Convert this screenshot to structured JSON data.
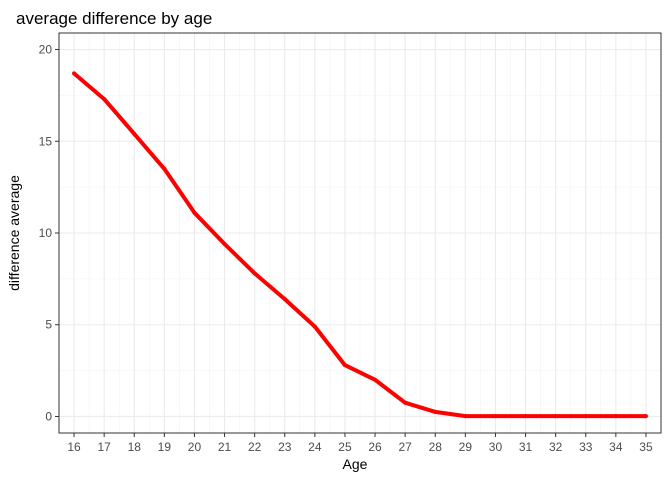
{
  "chart_data": {
    "type": "line",
    "title": "average difference by age",
    "xlabel": "Age",
    "ylabel": "difference average",
    "x": [
      16,
      17,
      18,
      19,
      20,
      21,
      22,
      23,
      24,
      25,
      26,
      27,
      28,
      29,
      30,
      31,
      32,
      33,
      34,
      35
    ],
    "xticks": [
      "16",
      "17",
      "18",
      "19",
      "20",
      "21",
      "22",
      "23",
      "24",
      "25",
      "26",
      "27",
      "28",
      "29",
      "30",
      "31",
      "32",
      "33",
      "34",
      "35"
    ],
    "yticks": [
      0,
      5,
      10,
      15,
      20
    ],
    "xlim": [
      15.5,
      35.5
    ],
    "ylim": [
      -0.9,
      20.9
    ],
    "grid": true,
    "legend": "none",
    "series": [
      {
        "color": "#ff0000",
        "values": [
          18.7,
          17.3,
          15.4,
          13.5,
          11.1,
          9.4,
          7.8,
          6.4,
          4.9,
          2.8,
          2.0,
          0.75,
          0.25,
          0.02,
          0.02,
          0.02,
          0.02,
          0.02,
          0.02,
          0.02
        ]
      }
    ]
  }
}
